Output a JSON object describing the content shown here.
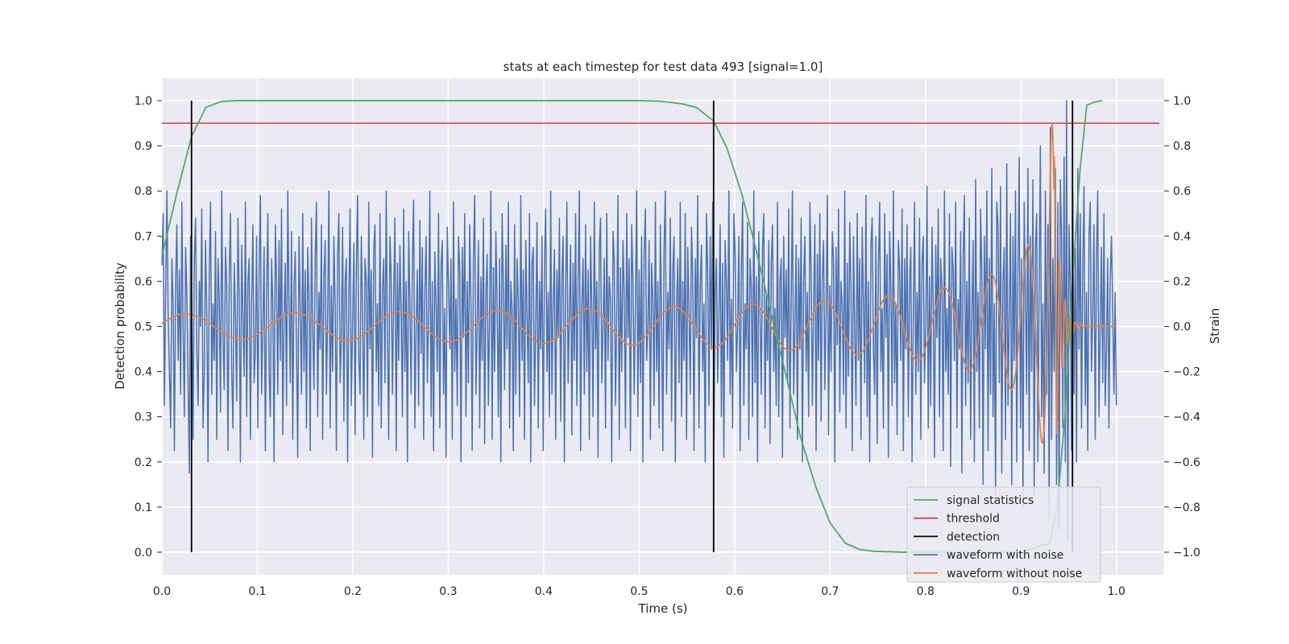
{
  "chart_data": {
    "type": "line",
    "title": "stats at each timestep for test data 493 [signal=1.0]",
    "xlabel": "Time (s)",
    "ylabel_left": "Detection probability",
    "ylabel_right": "Strain",
    "xlim": [
      0.0,
      1.05
    ],
    "ylim_left": [
      -0.05,
      1.05
    ],
    "ylim_right": [
      -1.1,
      1.1
    ],
    "x_ticks": [
      0.0,
      0.1,
      0.2,
      0.3,
      0.4,
      0.5,
      0.6,
      0.7,
      0.8,
      0.9,
      1.0
    ],
    "x_tick_labels": [
      "0.0",
      "0.1",
      "0.2",
      "0.3",
      "0.4",
      "0.5",
      "0.6",
      "0.7",
      "0.8",
      "0.9",
      "1.0"
    ],
    "y_left_ticks": [
      0.0,
      0.1,
      0.2,
      0.3,
      0.4,
      0.5,
      0.6,
      0.7,
      0.8,
      0.9,
      1.0
    ],
    "y_left_tick_labels": [
      "0.0",
      "0.1",
      "0.2",
      "0.3",
      "0.4",
      "0.5",
      "0.6",
      "0.7",
      "0.8",
      "0.9",
      "1.0"
    ],
    "y_right_ticks": [
      -1.0,
      -0.8,
      -0.6,
      -0.4,
      -0.2,
      0.0,
      0.2,
      0.4,
      0.6,
      0.8,
      1.0
    ],
    "y_right_tick_labels": [
      "−1.0",
      "−0.8",
      "−0.6",
      "−0.4",
      "−0.2",
      "0.0",
      "0.2",
      "0.4",
      "0.6",
      "0.8",
      "1.0"
    ],
    "grid": true,
    "legend_position": "lower-right",
    "colors": {
      "background": "#eaeaf2",
      "grid": "#ffffff",
      "signal_statistics": "#55a868",
      "threshold": "#c44e52",
      "detection": "#000000",
      "waveform_with_noise": "#4c72b0",
      "waveform_without_noise": "#dd8452"
    },
    "series": [
      {
        "name": "signal statistics",
        "axis": "left",
        "x": [
          0.0,
          0.015,
          0.031,
          0.046,
          0.062,
          0.077,
          0.1,
          0.2,
          0.3,
          0.4,
          0.5,
          0.52,
          0.53,
          0.545,
          0.56,
          0.578,
          0.592,
          0.608,
          0.623,
          0.638,
          0.654,
          0.669,
          0.685,
          0.7,
          0.716,
          0.731,
          0.746,
          0.762,
          0.777,
          0.8,
          0.85,
          0.9,
          0.93,
          0.938,
          0.946,
          0.954,
          0.962,
          0.969,
          0.977,
          0.985
        ],
        "y": [
          0.655,
          0.79,
          0.92,
          0.985,
          0.998,
          1.0,
          1.0,
          1.0,
          1.0,
          1.0,
          1.0,
          0.999,
          0.997,
          0.993,
          0.985,
          0.955,
          0.895,
          0.79,
          0.665,
          0.53,
          0.39,
          0.255,
          0.145,
          0.065,
          0.02,
          0.006,
          0.002,
          0.001,
          0.0,
          0.0,
          0.0,
          0.0,
          0.02,
          0.1,
          0.3,
          0.6,
          0.85,
          0.99,
          0.997,
          1.0
        ]
      },
      {
        "name": "threshold",
        "axis": "left",
        "x": [
          0.0,
          1.045
        ],
        "y": [
          0.95,
          0.95
        ]
      },
      {
        "name": "detection",
        "axis": "left",
        "x": [
          0.031,
          0.578,
          0.954
        ],
        "y_range": [
          0.0,
          1.0
        ]
      },
      {
        "name": "waveform with noise",
        "axis": "right",
        "x_range": [
          0.0,
          1.0
        ],
        "y": [
          0.27,
          0.5,
          -0.35,
          0.15,
          0.6,
          0.05,
          -0.2,
          -0.45,
          0.3,
          0.1,
          -0.55,
          0.2,
          0.45,
          -0.15,
          0.25,
          -0.3,
          0.55,
          0.0,
          -0.4,
          0.35,
          0.15,
          -0.25,
          -0.65,
          0.4,
          0.1,
          -0.5,
          0.3,
          0.48,
          -0.1,
          -0.35,
          0.2,
          0.0,
          0.52,
          -0.45,
          -0.2,
          0.38,
          0.05,
          -0.6,
          0.25,
          0.55,
          -0.3,
          0.1,
          -0.15,
          0.42,
          -0.5,
          0.3,
          0.12,
          -0.38,
          0.6,
          -0.05,
          -0.28,
          0.35,
          0.18,
          -0.55,
          0.22,
          0.5,
          -0.2,
          -0.45,
          0.28,
          0.05,
          -0.33,
          0.48,
          0.14,
          -0.6,
          0.36,
          0.05,
          -0.22,
          0.55,
          -0.4,
          0.2,
          0.3,
          -0.5,
          0.1,
          0.45,
          -0.25,
          -0.1,
          0.4,
          -0.45,
          0.25,
          0.58,
          -0.3,
          0.0,
          0.35,
          -0.55,
          0.15,
          0.5,
          -0.2,
          -0.4,
          0.3,
          0.1,
          -0.6,
          0.45,
          0.2,
          -0.3,
          0.38,
          -0.15,
          0.52,
          -0.48,
          0.05,
          0.28,
          -0.35,
          0.6,
          0.1,
          -0.25,
          0.42,
          -0.5,
          0.18,
          0.33,
          -0.1,
          -0.58,
          0.4,
          0.08,
          -0.3,
          0.5,
          -0.2,
          0.25,
          -0.45,
          0.35,
          0.12,
          -0.55,
          0.48,
          0.0,
          -0.28,
          0.3,
          0.55,
          -0.4,
          0.15,
          -0.1,
          0.45,
          -0.5,
          0.22,
          0.38,
          -0.3,
          0.05,
          0.6,
          -0.45,
          0.18,
          -0.2,
          0.4,
          0.1,
          -0.55,
          0.32,
          0.5,
          -0.25,
          -0.05,
          0.44,
          -0.42,
          0.2,
          0.3,
          -0.6,
          0.12,
          0.52,
          -0.35,
          0.0,
          0.37,
          -0.48,
          0.26,
          0.58,
          -0.15,
          -0.3,
          0.4,
          0.08,
          -0.5,
          0.3,
          0.2,
          -0.4,
          0.55,
          -0.1,
          0.25,
          -0.58,
          0.35,
          0.45,
          -0.2,
          0.1,
          -0.35,
          0.5,
          -0.45,
          0.16,
          0.3,
          -0.25,
          0.6,
          -0.05,
          -0.5,
          0.4,
          0.22,
          -0.3,
          0.12,
          0.48,
          -0.55,
          0.28,
          -0.15,
          0.36,
          0.05,
          -0.4,
          0.52,
          -0.2,
          0.2,
          -0.6,
          0.42,
          0.1,
          -0.3,
          0.3,
          0.56,
          -0.45,
          0.0,
          0.25,
          -0.35,
          0.47,
          -0.12,
          0.35,
          -0.5,
          0.15,
          0.4,
          -0.25,
          0.05,
          0.6,
          -0.4,
          0.2,
          -0.55,
          0.33,
          0.1,
          -0.2,
          0.5,
          -0.45,
          0.27,
          0.38,
          -0.3,
          0.08,
          -0.58,
          0.44,
          0.18,
          -0.1,
          0.3,
          -0.5,
          0.55,
          -0.2,
          0.12,
          -0.35,
          0.4,
          0.25,
          -0.6,
          0.35,
          -0.05,
          0.5,
          -0.4,
          0.2,
          -0.25,
          0.45,
          0.1,
          -0.55,
          0.3,
          0.58,
          -0.3,
          0.0,
          0.38,
          -0.45,
          0.22,
          -0.15,
          0.48,
          -0.52,
          0.15,
          0.32,
          -0.35,
          0.05,
          0.6,
          -0.5,
          0.26,
          -0.2,
          0.42,
          0.1,
          -0.4,
          0.3,
          -0.6,
          0.5,
          0.18,
          -0.28,
          0.36,
          -0.1,
          0.55,
          -0.45,
          0.2,
          0.08,
          -0.55,
          0.45,
          -0.3,
          0.3,
          0.12,
          -0.4,
          0.58,
          -0.15,
          0.25,
          -0.5,
          0.38,
          0.05,
          -0.25,
          0.5,
          -0.6,
          0.28,
          0.35,
          -0.35,
          0.0,
          0.46,
          -0.45,
          0.2,
          -0.1,
          0.4,
          -0.55,
          0.3,
          0.52,
          -0.2,
          0.15,
          -0.4,
          0.6,
          -0.3,
          0.1,
          0.34,
          -0.5,
          0.25,
          -0.05,
          0.48,
          -0.42,
          0.22,
          0.4,
          -0.6,
          0.15,
          0.55,
          -0.25,
          0.05,
          0.36,
          -0.48,
          0.28,
          -0.15,
          0.5,
          -0.35,
          0.2,
          0.6,
          -0.55,
          0.1,
          0.3,
          -0.3,
          0.45,
          -0.2,
          0.25,
          -0.5,
          0.4,
          0.08,
          -0.4,
          0.55,
          -0.1,
          0.2,
          -0.58,
          0.35,
          0.48,
          -0.25,
          0.0,
          0.3,
          -0.45,
          0.5,
          -0.15,
          0.22,
          0.12,
          -0.6,
          0.42,
          0.3,
          -0.35,
          0.05,
          0.58,
          -0.5,
          0.26,
          -0.2,
          0.38,
          0.15,
          -0.45,
          0.5,
          -0.05,
          0.3,
          -0.55,
          0.45,
          0.2,
          -0.3,
          0.1,
          0.6,
          -0.4,
          0.25,
          -0.25,
          0.4,
          -0.6,
          0.32,
          0.52,
          -0.15,
          0.0,
          0.38,
          -0.5,
          0.28,
          0.12,
          -0.35,
          0.55,
          -0.2,
          0.2,
          -0.45,
          0.45,
          0.05,
          -0.55,
          0.35,
          0.6,
          -0.3,
          0.15,
          -0.1,
          0.48,
          -0.42,
          0.25,
          0.4,
          -0.6,
          0.1,
          0.3,
          -0.25,
          0.55,
          -0.4,
          0.2,
          -0.15,
          0.5,
          -0.5,
          0.35,
          0.08,
          -0.3,
          0.44,
          0.22,
          -0.55,
          0.3,
          -0.05,
          0.58,
          -0.45,
          0.18,
          0.36,
          -0.2,
          0.1,
          -0.6,
          0.5,
          0.25,
          -0.35,
          0.4,
          -0.1,
          0.55,
          -0.5,
          0.15,
          0.3,
          -0.25,
          0.05,
          0.45,
          -0.4,
          0.28,
          -0.58,
          0.38,
          0.2,
          -0.15,
          0.6,
          -0.3,
          0.12,
          -0.45,
          0.5,
          0.32,
          -0.2,
          0.0,
          0.4,
          -0.55,
          0.25,
          0.55,
          -0.35,
          0.1,
          -0.1,
          0.46,
          -0.5,
          0.3,
          0.18,
          -0.4,
          0.6,
          -0.25,
          0.22,
          -0.6,
          0.42,
          0.05,
          -0.3,
          0.35,
          0.5,
          -0.45,
          0.15,
          -0.15,
          0.38,
          -0.52,
          0.28,
          0.45,
          -0.2,
          0.08,
          -0.35,
          0.55,
          -0.4,
          0.2,
          0.3,
          -0.58,
          0.4,
          -0.05,
          0.25,
          -0.25,
          0.52,
          -0.45,
          0.12,
          0.6,
          -0.3,
          0.0,
          0.36,
          -0.5,
          0.3,
          -0.1,
          0.48,
          -0.6,
          0.2,
          0.4,
          -0.2,
          0.15,
          -0.4,
          0.55,
          0.25,
          -0.35,
          0.1,
          0.45,
          -0.55,
          0.32,
          -0.15,
          0.5,
          -0.42,
          0.22,
          0.38,
          -0.28,
          0.05,
          0.58,
          -0.48,
          0.18,
          -0.2,
          0.42,
          0.3,
          -0.6,
          0.35,
          -0.08,
          0.52,
          -0.38,
          0.2,
          0.1,
          -0.3,
          0.6,
          -0.45,
          0.28,
          -0.22,
          0.46,
          0.15,
          -0.55,
          0.4,
          0.0,
          -0.35,
          0.5,
          -0.15,
          0.3,
          -0.5,
          0.44,
          0.12,
          -0.25,
          0.58,
          -0.4,
          0.2,
          -0.6,
          0.36,
          0.48,
          -0.1,
          -0.3,
          0.4,
          -0.52,
          0.26,
          0.55,
          -0.2,
          0.08,
          -0.45,
          0.5,
          -0.05,
          0.32,
          -0.58,
          0.42,
          0.18,
          -0.35,
          0.6,
          -0.25,
          0.1,
          -0.48,
          0.38,
          0.25,
          -0.15,
          0.52,
          -0.55,
          0.3,
          -0.1,
          0.45,
          -0.4,
          0.2,
          0.35,
          -0.6,
          0.05,
          0.55,
          -0.3,
          0.15,
          -0.2,
          0.48,
          -0.5,
          0.28,
          0.4,
          -0.25,
          0.0,
          0.62,
          -0.45,
          0.22,
          -0.35,
          0.44,
          0.1,
          -0.58,
          0.36,
          -0.05,
          0.52,
          -0.4,
          0.3,
          0.18,
          -0.55,
          0.6,
          -0.2,
          0.08,
          -0.3,
          0.5,
          -0.62,
          0.35,
          0.25,
          -0.15,
          0.55,
          -0.45,
          0.12,
          -0.1,
          0.42,
          -0.65,
          0.3,
          0.58,
          -0.35,
          0.2,
          -0.25,
          0.48,
          -0.5,
          0.05,
          0.38,
          -0.6,
          0.65,
          -0.2,
          0.15,
          -0.45,
          0.52,
          0.25,
          -0.7,
          0.4,
          -0.1,
          0.6,
          -0.55,
          0.3,
          -0.3,
          0.7,
          -0.4,
          0.1,
          -0.75,
          0.55,
          0.45,
          -0.25,
          0.62,
          -0.65,
          0.2,
          0.35,
          -0.5,
          0.72,
          -0.35,
          0.05,
          0.5,
          -0.7,
          0.4,
          -0.15,
          0.6,
          -0.6,
          0.25,
          0.75,
          -0.45,
          0.3,
          -0.8,
          0.55,
          0.15,
          -0.3,
          0.7,
          -0.55,
          0.4,
          -0.2,
          0.65,
          -0.75,
          0.35,
          0.5,
          -0.6,
          0.2,
          0.8,
          -0.4,
          0.1,
          -0.65,
          0.6,
          -0.3,
          0.45,
          -0.85,
          0.88,
          -0.5,
          0.3,
          -0.2,
          0.7,
          -0.7,
          0.55,
          -0.9,
          0.65,
          0.4,
          -0.45,
          0.75,
          -0.6,
          1.0,
          -0.95,
          0.45,
          0.2,
          -0.55,
          0.6,
          -0.3,
          0.35,
          -0.6,
          0.7,
          -0.1,
          0.5,
          -0.45,
          0.25,
          0.62,
          -0.35,
          0.15,
          -0.55,
          0.4,
          0.55,
          -0.2,
          0.05,
          0.45,
          -0.5,
          0.3,
          0.6,
          -0.4,
          0.0,
          0.35,
          -0.25,
          0.5,
          -0.35,
          -0.1,
          0.3,
          -0.45,
          0.2,
          0.4,
          0.1,
          -0.3,
          0.15,
          -0.35
        ]
      },
      {
        "name": "waveform without noise",
        "axis": "right",
        "model": "chirp",
        "t_merge": 0.935,
        "x_range": [
          0.0,
          1.0
        ]
      }
    ]
  }
}
